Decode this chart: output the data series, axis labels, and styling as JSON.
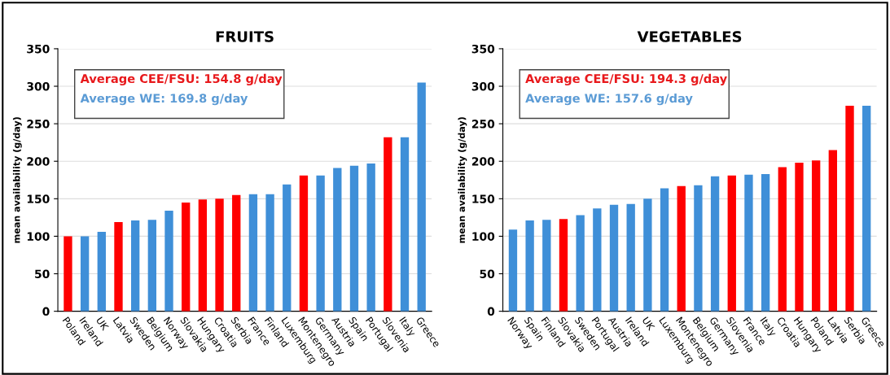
{
  "chart_data": [
    {
      "type": "bar",
      "title": "FRUITS",
      "ylabel": "mean availability (g/day)",
      "categories": [
        "Poland",
        "Ireland",
        "UK",
        "Latvia",
        "Sweden",
        "Belgium",
        "Norway",
        "Slovakia",
        "Hungary",
        "Croatia",
        "Serbia",
        "France",
        "Finland",
        "Luxemburg",
        "Montenegro",
        "Germany",
        "Austria",
        "Spain",
        "Portugal",
        "Slovenia",
        "Italy",
        "Greece"
      ],
      "values": [
        100,
        100,
        106,
        119,
        121,
        122,
        134,
        145,
        149,
        150,
        155,
        156,
        156,
        169,
        181,
        181,
        191,
        194,
        197,
        232,
        232,
        305
      ],
      "colors": [
        "#ff0000",
        "#3f8fd8",
        "#3f8fd8",
        "#ff0000",
        "#3f8fd8",
        "#3f8fd8",
        "#3f8fd8",
        "#ff0000",
        "#ff0000",
        "#ff0000",
        "#ff0000",
        "#3f8fd8",
        "#3f8fd8",
        "#3f8fd8",
        "#ff0000",
        "#3f8fd8",
        "#3f8fd8",
        "#3f8fd8",
        "#3f8fd8",
        "#ff0000",
        "#3f8fd8",
        "#3f8fd8"
      ],
      "ylim": [
        0,
        350
      ],
      "yticks": [
        0,
        50,
        100,
        150,
        200,
        250,
        300,
        350
      ],
      "grid": "y",
      "annotations": [
        "Average CEE/FSU: 154.8 g/day",
        "Average WE: 169.8 g/day"
      ]
    },
    {
      "type": "bar",
      "title": "VEGETABLES",
      "ylabel": "mean availability (g/day)",
      "categories": [
        "Norway",
        "Spain",
        "Finland",
        "Slovakia",
        "Sweden",
        "Portugal",
        "Austria",
        "Ireland",
        "UK",
        "Luxemburg",
        "Montenegro",
        "Belgium",
        "Germany",
        "Slovenia",
        "France",
        "Italy",
        "Croatia",
        "Hungary",
        "Poland",
        "Latvia",
        "Serbia",
        "Greece"
      ],
      "values": [
        109,
        121,
        122,
        123,
        128,
        137,
        142,
        143,
        150,
        164,
        167,
        168,
        180,
        181,
        182,
        183,
        192,
        198,
        201,
        215,
        274,
        274
      ],
      "colors": [
        "#3f8fd8",
        "#3f8fd8",
        "#3f8fd8",
        "#ff0000",
        "#3f8fd8",
        "#3f8fd8",
        "#3f8fd8",
        "#3f8fd8",
        "#3f8fd8",
        "#3f8fd8",
        "#ff0000",
        "#3f8fd8",
        "#3f8fd8",
        "#ff0000",
        "#3f8fd8",
        "#3f8fd8",
        "#ff0000",
        "#ff0000",
        "#ff0000",
        "#ff0000",
        "#ff0000",
        "#3f8fd8"
      ],
      "ylim": [
        0,
        350
      ],
      "yticks": [
        0,
        50,
        100,
        150,
        200,
        250,
        300,
        350
      ],
      "grid": "y",
      "annotations": [
        "Average CEE/FSU: 194.3 g/day",
        "Average WE: 157.6 g/day"
      ]
    }
  ]
}
